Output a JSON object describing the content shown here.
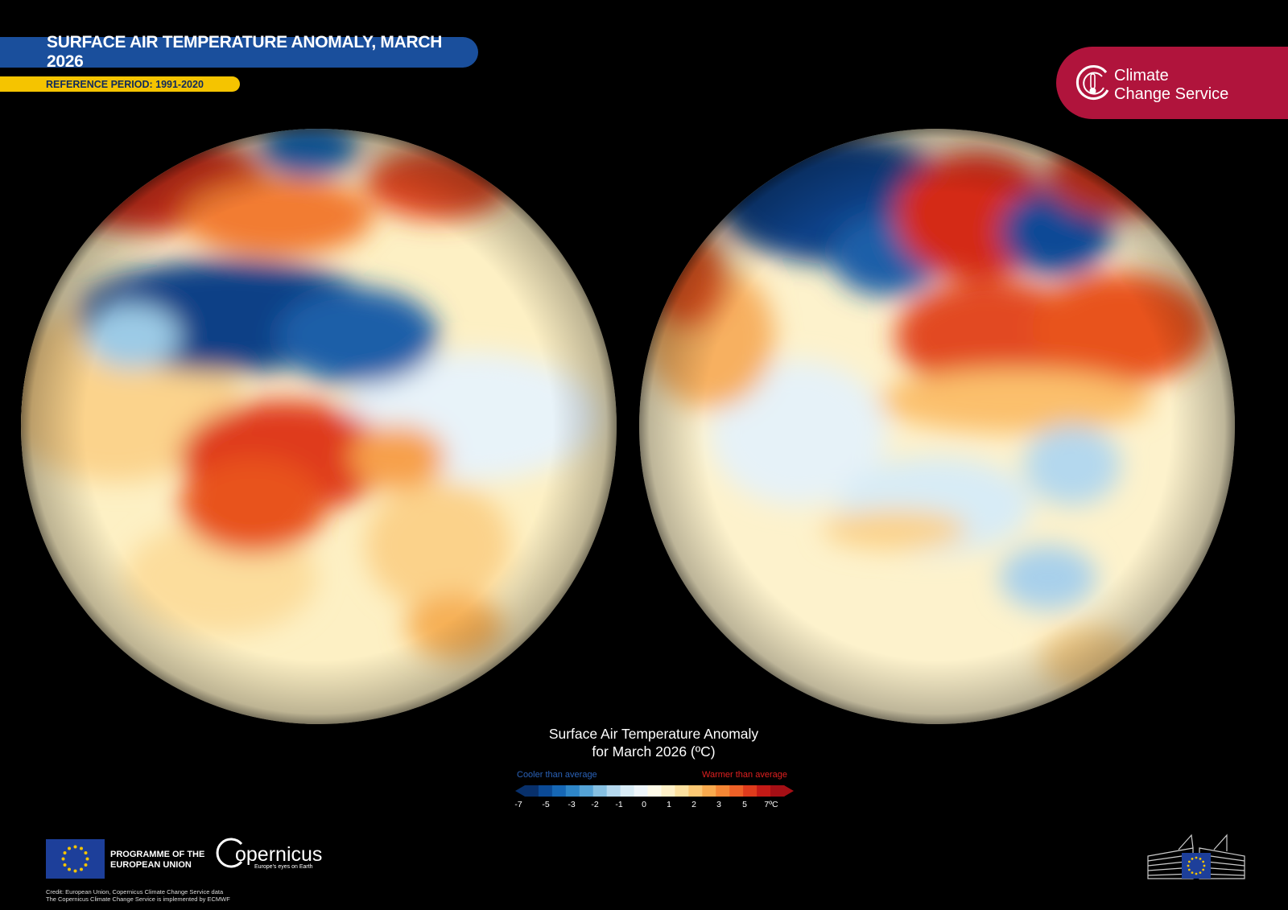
{
  "header": {
    "title": "SURFACE AIR TEMPERATURE ANOMALY, MARCH 2026",
    "reference": "REFERENCE PERIOD: 1991-2020"
  },
  "brand": {
    "c3s_line1": "Climate",
    "c3s_line2": "Change Service",
    "c3s_color": "#b0143c",
    "title_bar_color": "#1a4f9c",
    "ref_bar_color": "#f5c400"
  },
  "legend": {
    "title_line1": "Surface Air Temperature Anomaly",
    "title_line2": "for March 2026 (ºC)",
    "cooler_label": "Cooler than average",
    "warmer_label": "Warmer than average",
    "ticks": [
      "-7",
      "-5",
      "-3",
      "-2",
      "-1",
      "0",
      "1",
      "2",
      "3",
      "5",
      "7ºC"
    ],
    "colors": [
      "#08306b",
      "#0b4a96",
      "#1667b5",
      "#2e86c8",
      "#55a3d6",
      "#86c0e2",
      "#b4d8ee",
      "#d8ecf6",
      "#eef6fb",
      "#fffbe9",
      "#fff1c8",
      "#fde1a0",
      "#fcc874",
      "#f9aa4e",
      "#f58634",
      "#ee6127",
      "#df3b1c",
      "#c41a16",
      "#a50f15"
    ]
  },
  "footer": {
    "programme_line1": "PROGRAMME OF THE",
    "programme_line2": "EUROPEAN UNION",
    "copernicus": "opernicus",
    "copernicus_tagline": "Europe's eyes on Earth",
    "credit_line1": "Credit: European Union, Copernicus Climate Change Service data",
    "credit_line2": "The Copernicus Climate Change Service is implemented by ECMWF"
  }
}
